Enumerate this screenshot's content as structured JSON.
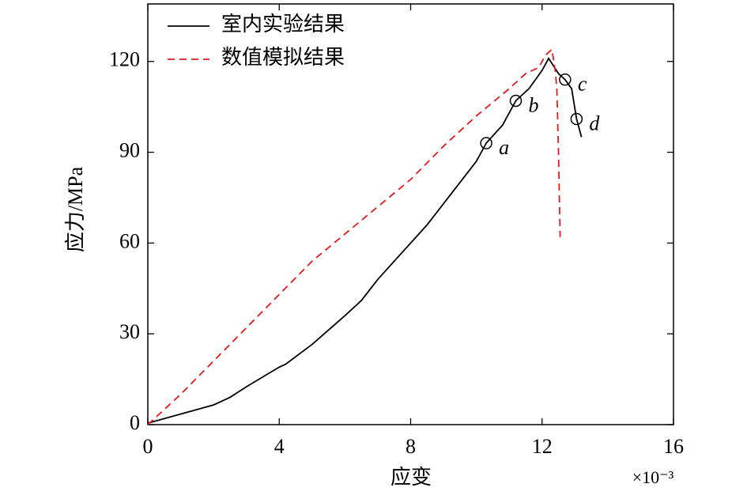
{
  "chart_data": {
    "type": "line",
    "xlabel": "应变",
    "x_multiplier": "×10⁻³",
    "ylabel": "应力/MPa",
    "xlim": [
      0,
      16
    ],
    "ylim": [
      0,
      139
    ],
    "xticks": [
      0,
      4,
      8,
      12,
      16
    ],
    "yticks": [
      0,
      30,
      60,
      90,
      120
    ],
    "legend": "upper left",
    "grid": false,
    "series": [
      {
        "name": "室内实验结果",
        "color": "#000000",
        "linestyle": "solid",
        "x": [
          0,
          1,
          2,
          2.5,
          3,
          4,
          4.2,
          5,
          6,
          6.5,
          7,
          8,
          8.5,
          9,
          9.5,
          10,
          10.3,
          10.8,
          11.2,
          11.6,
          12,
          12.2,
          12.5,
          12.7,
          12.9,
          13.05,
          13.2
        ],
        "values": [
          0.5,
          3.5,
          6.5,
          9,
          12.5,
          19,
          20,
          26.5,
          36,
          41,
          48,
          60,
          66,
          73,
          80,
          87,
          93,
          99,
          107,
          111,
          117,
          121,
          116,
          114,
          111,
          101,
          95
        ]
      },
      {
        "name": "数值模拟结果",
        "color": "#e41a1c",
        "linestyle": "dashed",
        "x": [
          0,
          1,
          2,
          3,
          4,
          5,
          6,
          7,
          8,
          9,
          10,
          11,
          11.5,
          11.9,
          12.1,
          12.3,
          12.4,
          12.45,
          12.5,
          12.55
        ],
        "values": [
          0,
          10,
          21,
          32,
          43,
          54,
          63,
          72,
          81,
          92,
          102,
          111,
          116,
          118,
          122,
          124,
          117,
          111,
          90,
          62
        ]
      }
    ],
    "annotations": [
      {
        "text": "a",
        "x": 10.3,
        "y": 93
      },
      {
        "text": "b",
        "x": 11.2,
        "y": 107
      },
      {
        "text": "c",
        "x": 12.7,
        "y": 114
      },
      {
        "text": "d",
        "x": 13.05,
        "y": 101
      }
    ]
  }
}
